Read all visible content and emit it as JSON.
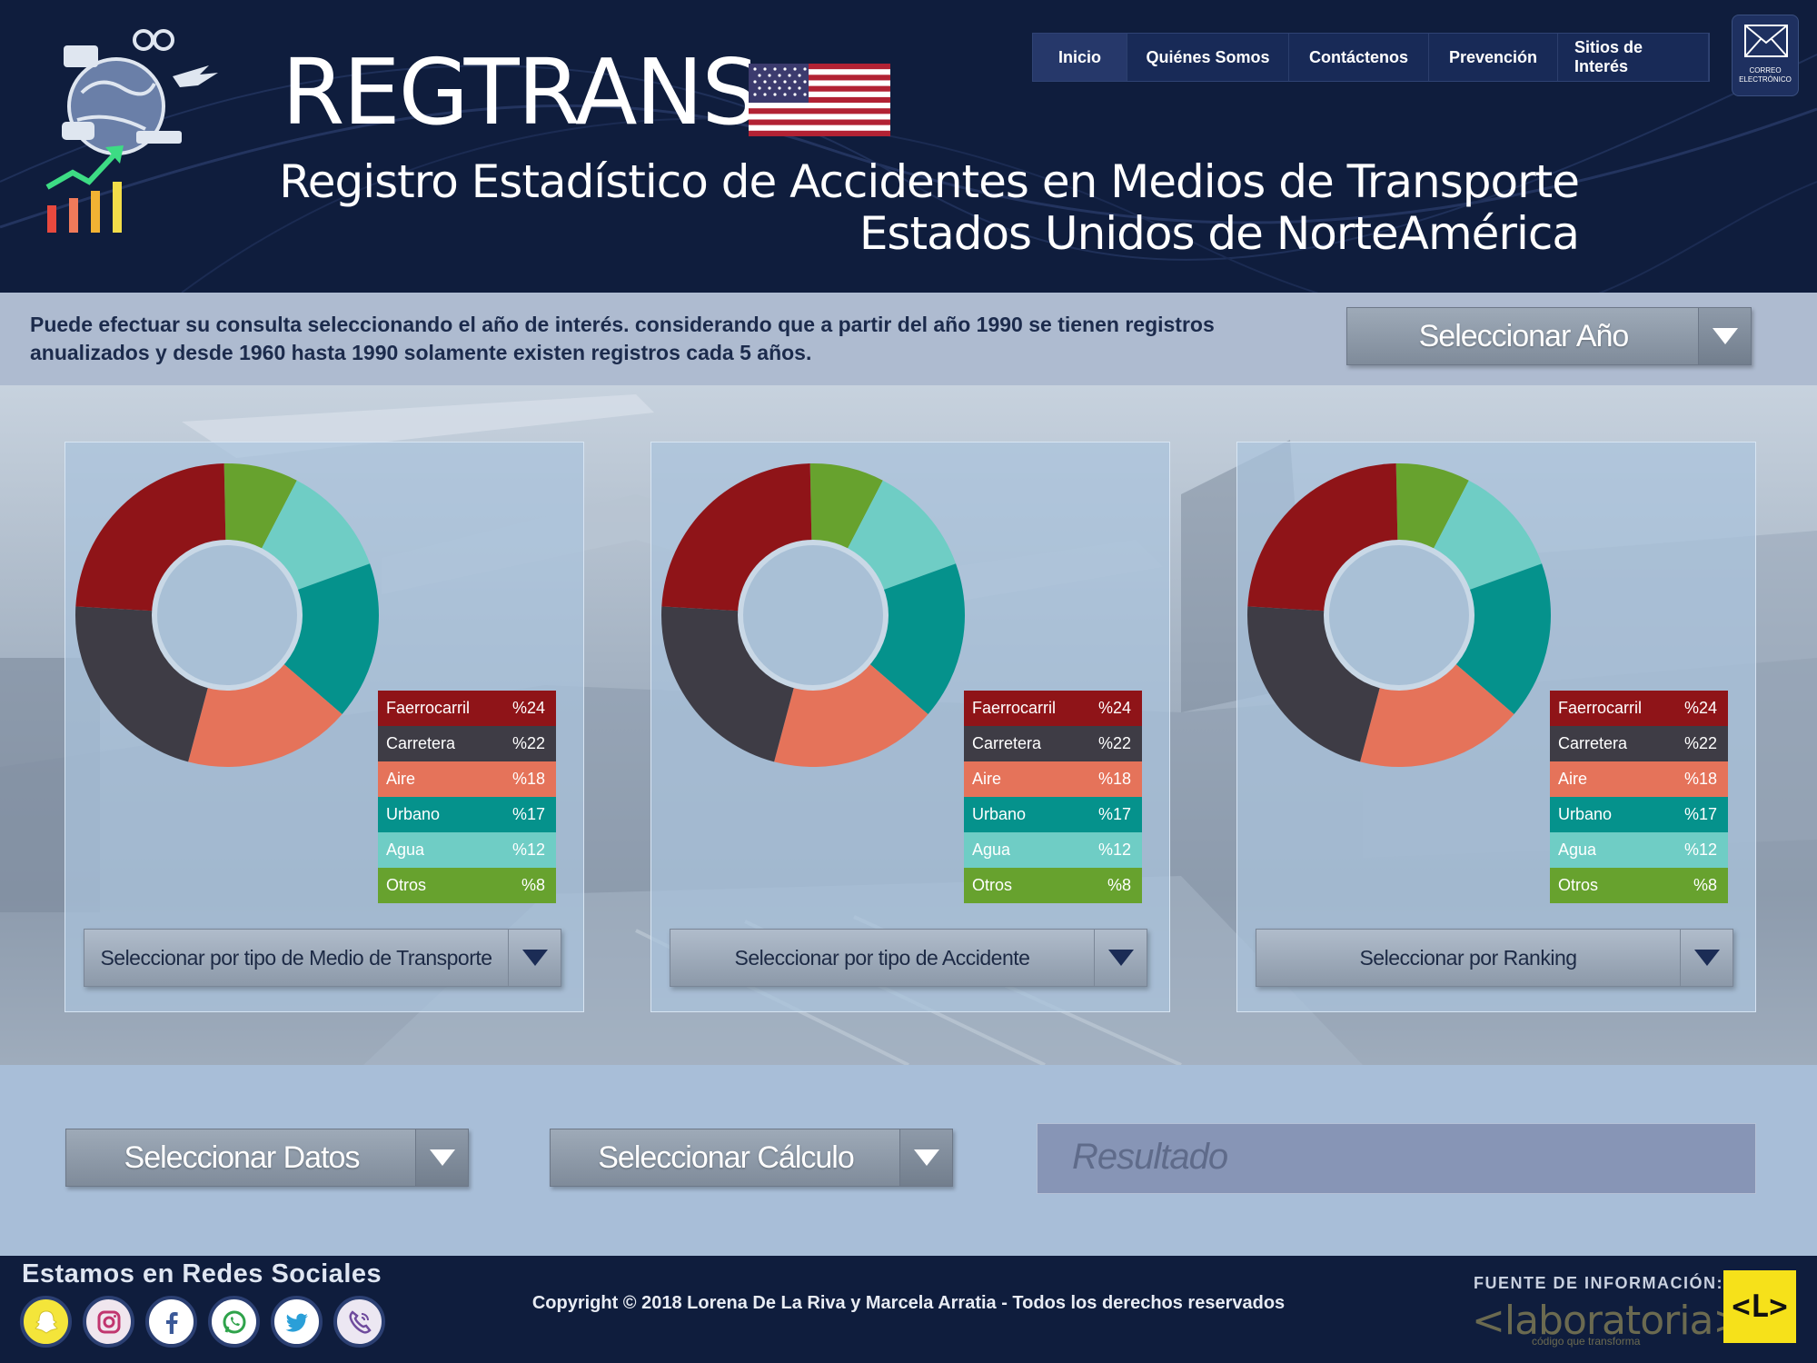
{
  "header": {
    "brand": "REGTRANS",
    "subtitle_line1": "Registro Estadístico de Accidentes en Medios de Transporte",
    "subtitle_line2": "Estados Unidos de NorteAmérica",
    "flag_icon": "us-flag-icon",
    "logo_icon": "transport-globe-chart-icon"
  },
  "nav": {
    "items": [
      {
        "label": "Inicio",
        "active": true
      },
      {
        "label": "Quiénes Somos"
      },
      {
        "label": "Contáctenos"
      },
      {
        "label": "Prevención"
      },
      {
        "label": "Sitios de Interés"
      }
    ],
    "mail_label_1": "CORREO",
    "mail_label_2": "ELECTRÓNICO"
  },
  "info": {
    "text": "Puede efectuar su consulta seleccionando el año de interés. considerando que a partir del año 1990 se tienen registros anualizados y desde 1960 hasta 1990 solamente existen registros cada 5 años.",
    "year_select": "Seleccionar Año"
  },
  "panels": [
    {
      "select_label": "Seleccionar por tipo de Medio de Transporte"
    },
    {
      "select_label": "Seleccionar por tipo de Accidente"
    },
    {
      "select_label": "Seleccionar por Ranking"
    }
  ],
  "legend": [
    {
      "label": "Faerrocarril",
      "value": "%24",
      "color": "#8f1418"
    },
    {
      "label": "Carretera",
      "value": "%22",
      "color": "#3e3c45"
    },
    {
      "label": "Aire",
      "value": "%18",
      "color": "#e5735a"
    },
    {
      "label": "Urbano",
      "value": "%17",
      "color": "#05928c"
    },
    {
      "label": "Agua",
      "value": "%12",
      "color": "#6fcdc5"
    },
    {
      "label": "Otros",
      "value": "%8",
      "color": "#67a22e"
    }
  ],
  "chart_data": [
    {
      "type": "pie",
      "categories": [
        "Faerrocarril",
        "Carretera",
        "Aire",
        "Urbano",
        "Agua",
        "Otros"
      ],
      "values": [
        24,
        22,
        18,
        17,
        12,
        8
      ],
      "colors": [
        "#8f1418",
        "#3e3c45",
        "#e5735a",
        "#05928c",
        "#6fcdc5",
        "#67a22e"
      ],
      "legend": "bottom-right"
    },
    {
      "type": "pie",
      "categories": [
        "Faerrocarril",
        "Carretera",
        "Aire",
        "Urbano",
        "Agua",
        "Otros"
      ],
      "values": [
        24,
        22,
        18,
        17,
        12,
        8
      ],
      "colors": [
        "#8f1418",
        "#3e3c45",
        "#e5735a",
        "#05928c",
        "#6fcdc5",
        "#67a22e"
      ],
      "legend": "bottom-right"
    },
    {
      "type": "pie",
      "categories": [
        "Faerrocarril",
        "Carretera",
        "Aire",
        "Urbano",
        "Agua",
        "Otros"
      ],
      "values": [
        24,
        22,
        18,
        17,
        12,
        8
      ],
      "colors": [
        "#8f1418",
        "#3e3c45",
        "#e5735a",
        "#05928c",
        "#6fcdc5",
        "#67a22e"
      ],
      "legend": "bottom-right"
    }
  ],
  "controls": {
    "data_select": "Seleccionar Datos",
    "calc_select": "Seleccionar Cálculo",
    "result_placeholder": "Resultado"
  },
  "footer": {
    "social_title": "Estamos en Redes Sociales",
    "social_icons": [
      "snapchat-icon",
      "instagram-icon",
      "facebook-icon",
      "whatsapp-icon",
      "twitter-icon",
      "viber-icon"
    ],
    "copyright": "Copyright © 2018 Lorena De La Riva y Marcela Arratia - Todos los derechos reservados",
    "source_label": "FUENTE DE INFORMACIÓN:",
    "source_name": "<laboratoria>",
    "source_tagline": "código que transforma",
    "source_badge": "<L>"
  },
  "colors": {
    "navy": "#0f1d3d",
    "info_bar": "#aebbd0",
    "lower_band": "#a8bed8",
    "accent_yellow": "#f6e11a"
  }
}
